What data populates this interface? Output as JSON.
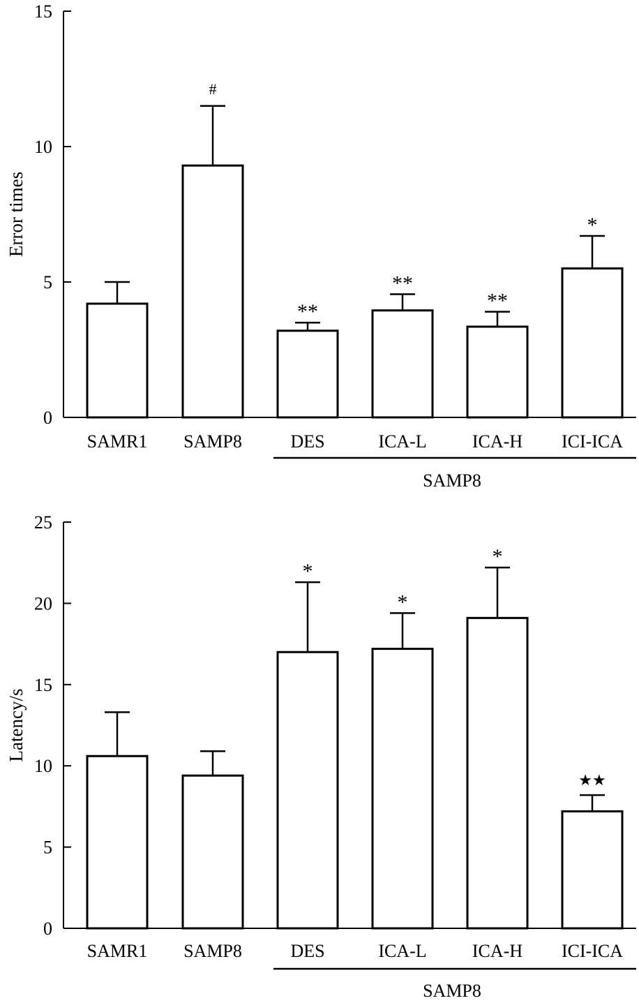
{
  "chart_data": [
    {
      "type": "bar",
      "title": "",
      "xlabel": "",
      "ylabel": "Error times",
      "ylim": [
        0,
        15
      ],
      "yticks": [
        0,
        5,
        10,
        15
      ],
      "categories": [
        "SAMR1",
        "SAMP8",
        "DES",
        "ICA-L",
        "ICA-H",
        "ICI-ICA"
      ],
      "values": [
        4.2,
        9.3,
        3.2,
        3.95,
        3.35,
        5.5
      ],
      "errors": [
        0.8,
        2.2,
        0.3,
        0.6,
        0.55,
        1.2
      ],
      "annotations": [
        "",
        "#",
        "**",
        "**",
        "**",
        "*"
      ],
      "group_label": "SAMP8",
      "grid": false
    },
    {
      "type": "bar",
      "title": "",
      "xlabel": "",
      "ylabel": "Latency/s",
      "ylim": [
        0,
        25
      ],
      "yticks": [
        0,
        5,
        10,
        15,
        20,
        25
      ],
      "categories": [
        "SAMR1",
        "SAMP8",
        "DES",
        "ICA-L",
        "ICA-H",
        "ICI-ICA"
      ],
      "values": [
        10.6,
        9.4,
        17.0,
        17.2,
        19.1,
        7.2
      ],
      "errors": [
        2.7,
        1.5,
        4.3,
        2.2,
        3.1,
        1.0
      ],
      "annotations": [
        "*",
        "",
        "*",
        "*",
        "*",
        "★★"
      ],
      "annotation_visible": [
        false,
        false,
        true,
        true,
        true,
        true
      ],
      "group_label": "SAMP8",
      "grid": false
    }
  ]
}
